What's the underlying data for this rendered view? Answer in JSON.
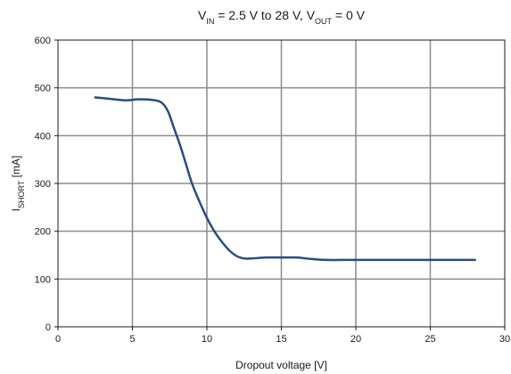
{
  "chart_data": {
    "type": "line",
    "title": {
      "parts": [
        {
          "text": "V",
          "sub": false
        },
        {
          "text": "IN",
          "sub": true
        },
        {
          "text": " = 2.5 V to 28 V, V",
          "sub": false
        },
        {
          "text": "OUT",
          "sub": true
        },
        {
          "text": " = 0 V",
          "sub": false
        }
      ]
    },
    "xlabel": "Dropout voltage [V]",
    "ylabel": {
      "parts": [
        {
          "text": "I",
          "sub": false
        },
        {
          "text": "SHORT",
          "sub": true
        },
        {
          "text": " [mA]",
          "sub": false
        }
      ]
    },
    "xlim": [
      0,
      30
    ],
    "ylim": [
      0,
      600
    ],
    "xticks": [
      0,
      5,
      10,
      15,
      20,
      25,
      30
    ],
    "yticks": [
      0,
      100,
      200,
      300,
      400,
      500,
      600
    ],
    "grid": true,
    "line_color": "#2b4c7e",
    "grid_color": "#8c8c8c",
    "series": [
      {
        "x": [
          2.5,
          3.5,
          4.5,
          5.5,
          6.5,
          7.0,
          7.4,
          7.8,
          8.2,
          8.6,
          9.0,
          9.5,
          10.0,
          10.5,
          11.0,
          11.5,
          12.0,
          12.5,
          13.0,
          14.0,
          15.0,
          16.0,
          17.0,
          18.0,
          20.0,
          22.0,
          24.0,
          26.0,
          28.0
        ],
        "y": [
          480,
          477,
          474,
          476,
          474,
          468,
          450,
          415,
          380,
          340,
          300,
          262,
          228,
          200,
          178,
          160,
          148,
          143,
          143,
          145,
          145,
          145,
          142,
          140,
          140,
          140,
          140,
          140,
          140
        ]
      }
    ]
  }
}
